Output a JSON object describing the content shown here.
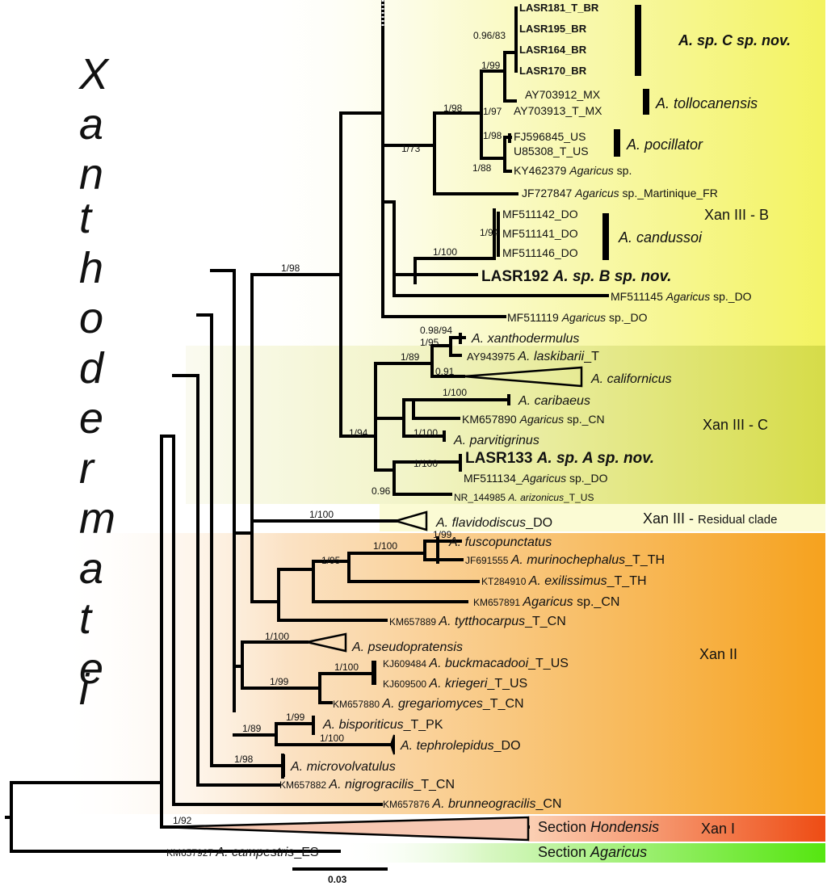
{
  "genus_vertical_label": "Xanthodermatei",
  "clade_labels": {
    "sp_c": "A. sp. C sp. nov.",
    "tollocanensis": "A. tollocanensis",
    "pocillator": "A. pocillator",
    "xan3b": "Xan III - B",
    "candussoi": "A. candussoi",
    "xan3c": "Xan III - C",
    "xan3_residual_prefix": "Xan III - ",
    "xan3_residual_suffix": "Residual clade",
    "xan2": "Xan II",
    "xan1": "Xan I",
    "section_hondensis_prefix": "Section ",
    "section_hondensis_name": "Hondensis",
    "section_agaricus_prefix": "Section ",
    "section_agaricus_name": "Agaricus"
  },
  "tips": {
    "lasr181": "LASR181_T_BR",
    "lasr195": "LASR195_BR",
    "lasr164": "LASR164_BR",
    "lasr170": "LASR170_BR",
    "ay703912": "AY703912_MX",
    "ay703913": "AY703913_T_MX",
    "fj596845": "FJ596845_US",
    "u85308": "U85308_T_US",
    "ky462379_acc": "KY462379 ",
    "ky462379_sp": "Agaricus",
    "ky462379_suf": " sp.",
    "jf727847_acc": "JF727847 ",
    "jf727847_sp": "Agaricus",
    "jf727847_suf": " sp._Martinique_FR",
    "mf511142": "MF511142_DO",
    "mf511141": "MF511141_DO",
    "mf511146": "MF511146_DO",
    "lasr192_acc": "LASR192 ",
    "lasr192_sp": "A. sp. B sp. nov.",
    "mf511145_acc": "MF511145 ",
    "mf511145_sp": "Agaricus",
    "mf511145_suf": " sp._DO",
    "mf511119_acc": "MF511119 ",
    "mf511119_sp": "Agaricus",
    "mf511119_suf": " sp._DO",
    "xanthodermulus": "A. xanthodermulus",
    "ay943975_acc": "AY943975 ",
    "ay943975_sp": "A. laskibarii",
    "ay943975_suf": "_T",
    "californicus": "A. californicus",
    "caribaeus": "A. caribaeus",
    "km657890_acc": "KM657890 ",
    "km657890_sp": "Agaricus",
    "km657890_suf": " sp._CN",
    "parvitigrinus": "A. parvitigrinus",
    "lasr133_acc": "LASR133 ",
    "lasr133_sp": "A. sp. A sp. nov.",
    "mf511134_acc": "MF511134_",
    "mf511134_sp": "Agaricus",
    "mf511134_suf": " sp._DO",
    "nr144985_acc": "NR_144985 ",
    "nr144985_sp": "A. arizonicus",
    "nr144985_suf": "_T_US",
    "flavidodiscus_sp": "A. flavidodiscus",
    "flavidodiscus_suf": "_DO",
    "fuscopunctatus": "A. fuscopunctatus",
    "jf691555_acc": "JF691555 ",
    "jf691555_sp": "A. murinochephalus",
    "jf691555_suf": "_T_TH",
    "kt284910_acc": "KT284910 ",
    "kt284910_sp": "A. exilissimus",
    "kt284910_suf": "_T_TH",
    "km657891_acc": "KM657891 ",
    "km657891_sp": "Agaricus",
    "km657891_suf": " sp._CN",
    "km657889_acc": "KM657889 ",
    "km657889_sp": "A. tytthocarpus",
    "km657889_suf": "_T_CN",
    "pseudopratensis": "A. pseudopratensis",
    "kj609484_acc": "KJ609484 ",
    "kj609484_sp": "A. buckmacadooi",
    "kj609484_suf": "_T_US",
    "kj609500_acc": "KJ609500 ",
    "kj609500_sp": "A. kriegeri",
    "kj609500_suf": "_T_US",
    "km657880_acc": "KM657880 ",
    "km657880_sp": "A. gregariomyces",
    "km657880_suf": "_T_CN",
    "bisporiticus_sp": "A. bisporiticus",
    "bisporiticus_suf": "_T_PK",
    "tephrolepidus_sp": "A. tephrolepidus",
    "tephrolepidus_suf": "_DO",
    "microvolvatulus": "A. microvolvatulus",
    "km657882_acc": "KM657882 ",
    "km657882_sp": "A. nigrogracilis",
    "km657882_suf": "_T_CN",
    "km657876_acc": "KM657876 ",
    "km657876_sp": "A. brunneogracilis",
    "km657876_suf": "_CN",
    "km657927_acc": "KM657927 ",
    "km657927_sp": "A. campestris",
    "km657927_suf": "_ES"
  },
  "support_values": {
    "s_096_83": "0.96/83",
    "s_1_99_a": "1/99",
    "s_1_97": "1/97",
    "s_1_98_a": "1/98",
    "s_1_98_b": "1/98",
    "s_1_73": "1/73",
    "s_1_88": "1/88",
    "s_1_94_a": "1/94",
    "s_1_100_a": "1/100",
    "s_098_94": "0.98/94",
    "s_1_95_a": "1/95",
    "s_1_89_a": "1/89",
    "s_091": "0.91",
    "s_1_100_b": "1/100",
    "s_1_100_c": "1/100",
    "s_1_94_b": "1/94",
    "s_1_100_d": "1/100",
    "s_096": "0.96",
    "s_1_100_e": "1/100",
    "s_1_99_b": "1/99",
    "s_1_100_f": "1/100",
    "s_1_95_b": "1/95",
    "s_1_100_g": "1/100",
    "s_1_100_h": "1/100",
    "s_1_99_c": "1/99",
    "s_1_89_b": "1/89",
    "s_1_99_d": "1/99",
    "s_1_100_i": "1/100",
    "s_1_98_c": "1/98",
    "s_1_92": "1/92"
  },
  "scale_bar": {
    "label": "0.03"
  },
  "colors": {
    "xan3b_band": "#f3f36a",
    "xan3c_band": "#dfe25a",
    "xan3_residual_band": "#fbfbd2",
    "xan2_band": "#f8a72a",
    "xan1_band": "#ef5a1e",
    "agaricus_band": "#5fe81a"
  }
}
